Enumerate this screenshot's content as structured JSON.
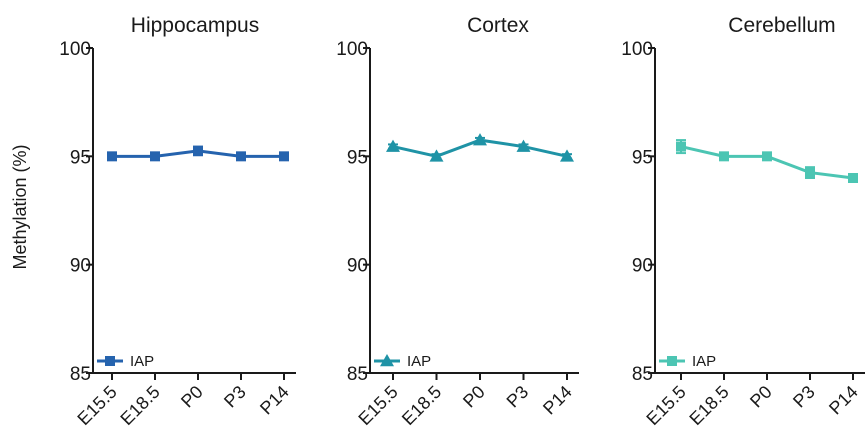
{
  "chart_data": [
    {
      "type": "line",
      "title": "Hippocampus",
      "ylabel": "Methylation (%)",
      "xlabel": "",
      "categories": [
        "E15.5",
        "E18.5",
        "P0",
        "P3",
        "P14"
      ],
      "ylim": [
        85,
        100
      ],
      "yticks": [
        "85",
        "90",
        "95",
        "100"
      ],
      "marker": "square",
      "series": [
        {
          "name": "IAP",
          "color": "#2563ae",
          "values": [
            95.0,
            95.0,
            95.25,
            95.0,
            95.0
          ],
          "errors": [
            0.1,
            0.1,
            0.2,
            0.1,
            0.1
          ]
        }
      ],
      "legend": "bottom-left",
      "grid": false
    },
    {
      "type": "line",
      "title": "Cortex",
      "ylabel": "",
      "xlabel": "",
      "categories": [
        "E15.5",
        "E18.5",
        "P0",
        "P3",
        "P14"
      ],
      "ylim": [
        85,
        100
      ],
      "yticks": [
        "85",
        "90",
        "95",
        "100"
      ],
      "marker": "triangle",
      "series": [
        {
          "name": "IAP",
          "color": "#1f93a6",
          "values": [
            95.45,
            95.0,
            95.75,
            95.45,
            95.0
          ],
          "errors": [
            0.1,
            0.1,
            0.1,
            0.1,
            0.1
          ]
        }
      ],
      "legend": "bottom-left",
      "grid": false
    },
    {
      "type": "line",
      "title": "Cerebellum",
      "ylabel": "",
      "xlabel": "",
      "categories": [
        "E15.5",
        "E18.5",
        "P0",
        "P3",
        "P14"
      ],
      "ylim": [
        85,
        100
      ],
      "yticks": [
        "85",
        "90",
        "95",
        "100"
      ],
      "marker": "square",
      "series": [
        {
          "name": "IAP",
          "color": "#4cc5b3",
          "values": [
            95.45,
            95.0,
            95.0,
            94.25,
            94.0
          ],
          "errors": [
            0.3,
            0.1,
            0.1,
            0.25,
            0.1
          ]
        }
      ],
      "legend": "bottom-left",
      "grid": false
    }
  ]
}
